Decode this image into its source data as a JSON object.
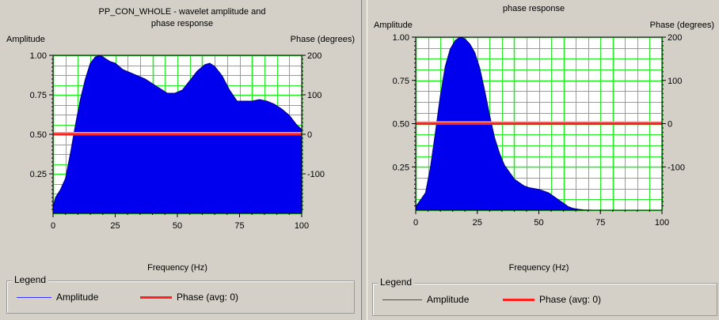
{
  "chart_data": [
    {
      "type": "area",
      "title": "PP_CON_WHOLE - wavelet amplitude and phase response",
      "title_lines": [
        "PP_CON_WHOLE - wavelet amplitude and",
        "phase response"
      ],
      "xlabel": "Frequency (Hz)",
      "ylabel": "Amplitude",
      "y2label": "Phase (degrees)",
      "xlim": [
        0,
        100
      ],
      "ylim": [
        0,
        1.0
      ],
      "y2lim": [
        -200,
        200
      ],
      "xticks": [
        "0",
        "25",
        "50",
        "75",
        "100"
      ],
      "yticks": [
        "0.25",
        "0.50",
        "0.75",
        "1.00"
      ],
      "y2ticks": [
        "-100",
        "0",
        "100",
        "200"
      ],
      "grid": true,
      "series": [
        {
          "name": "Amplitude",
          "axis": "left",
          "color": "#0000ee",
          "x": [
            0,
            1,
            3,
            5,
            7,
            9,
            11,
            13,
            15,
            17,
            19,
            21,
            23,
            25,
            28,
            31,
            34,
            37,
            40,
            43,
            46,
            49,
            52,
            55,
            58,
            61,
            63,
            65,
            68,
            71,
            74,
            77,
            80,
            83,
            86,
            89,
            92,
            95,
            98,
            100
          ],
          "y": [
            0.04,
            0.1,
            0.15,
            0.22,
            0.38,
            0.56,
            0.72,
            0.85,
            0.95,
            0.99,
            1.0,
            0.98,
            0.96,
            0.95,
            0.91,
            0.89,
            0.87,
            0.85,
            0.82,
            0.79,
            0.76,
            0.76,
            0.78,
            0.84,
            0.9,
            0.94,
            0.95,
            0.93,
            0.87,
            0.78,
            0.71,
            0.71,
            0.71,
            0.72,
            0.71,
            0.69,
            0.66,
            0.62,
            0.56,
            0.53
          ]
        },
        {
          "name": "Phase (avg: 0)",
          "axis": "right",
          "color": "#ff2020",
          "x": [
            0,
            100
          ],
          "y": [
            0,
            0
          ]
        }
      ],
      "legend": {
        "title": "Legend",
        "placement": "bottom",
        "items": [
          "Amplitude",
          "Phase (avg: 0)"
        ]
      }
    },
    {
      "type": "area",
      "title": "phase response",
      "title_lines": [
        "phase response"
      ],
      "xlabel": "Frequency (Hz)",
      "ylabel": "Amplitude",
      "y2label": "Phase (degrees)",
      "xlim": [
        0,
        100
      ],
      "ylim": [
        0,
        1.0
      ],
      "y2lim": [
        -200,
        200
      ],
      "xticks": [
        "0",
        "25",
        "50",
        "75",
        "100"
      ],
      "yticks": [
        "0.25",
        "0.50",
        "0.75",
        "1.00"
      ],
      "y2ticks": [
        "-100",
        "0",
        "100",
        "200"
      ],
      "grid": true,
      "series": [
        {
          "name": "Amplitude",
          "axis": "left",
          "color": "#0000ee",
          "x": [
            0,
            2,
            4,
            6,
            8,
            10,
            12,
            14,
            16,
            18,
            20,
            22,
            24,
            26,
            28,
            30,
            32,
            34,
            36,
            38,
            40,
            42,
            44,
            46,
            48,
            50,
            52,
            54,
            56,
            58,
            60,
            62,
            64,
            66,
            68,
            72,
            76,
            80,
            84,
            88
          ],
          "y": [
            0.02,
            0.06,
            0.1,
            0.25,
            0.45,
            0.66,
            0.83,
            0.93,
            0.98,
            1.0,
            0.99,
            0.96,
            0.91,
            0.82,
            0.69,
            0.55,
            0.42,
            0.33,
            0.26,
            0.22,
            0.18,
            0.16,
            0.14,
            0.13,
            0.125,
            0.12,
            0.11,
            0.1,
            0.08,
            0.06,
            0.04,
            0.02,
            0.01,
            0.005,
            0.002,
            0.0,
            0.0,
            0.0,
            0.0,
            0.0
          ]
        },
        {
          "name": "Phase (avg: 0)",
          "axis": "right",
          "color": "#ff2020",
          "x": [
            0,
            100
          ],
          "y": [
            0,
            0
          ]
        }
      ],
      "legend": {
        "title": "Legend",
        "placement": "bottom",
        "items": [
          "Amplitude",
          "Phase (avg: 0)"
        ]
      }
    }
  ]
}
